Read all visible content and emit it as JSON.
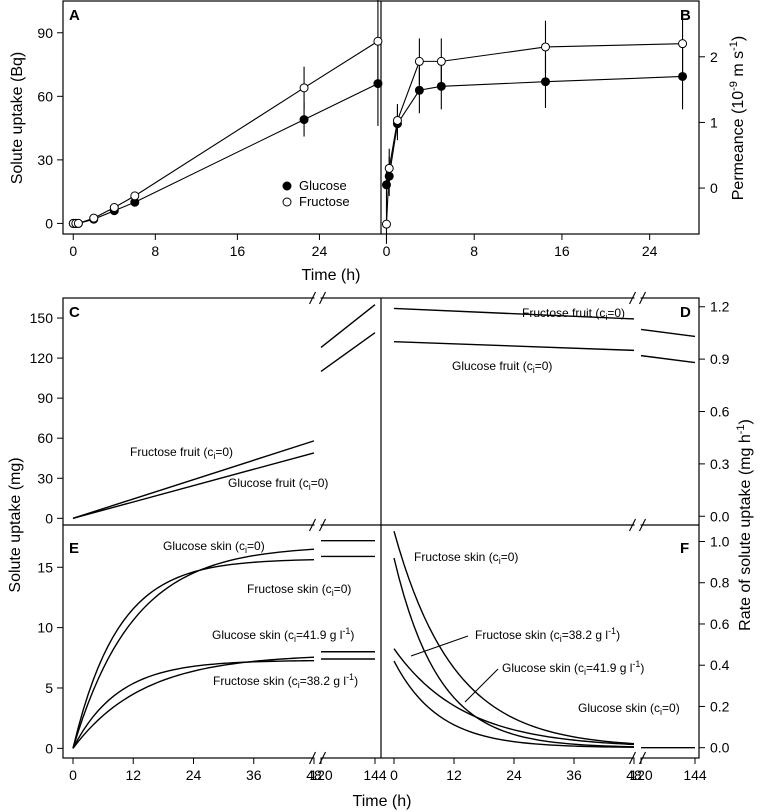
{
  "chart_data": [
    {
      "panel": "A",
      "type": "scatter",
      "xlabel": "Time (h)",
      "ylabel": "Solute uptake (Bq)",
      "xlim": [
        -1,
        30
      ],
      "ylim": [
        -5,
        105
      ],
      "x_ticks": [
        0,
        8,
        16,
        24
      ],
      "y_ticks": [
        0,
        30,
        60,
        90
      ],
      "series": [
        {
          "name": "Glucose",
          "marker": "filled",
          "x": [
            0,
            0.25,
            0.5,
            2,
            4,
            6,
            22.5,
            29.7
          ],
          "y": [
            0,
            0,
            0,
            2,
            6,
            10,
            49,
            66
          ],
          "err": [
            0,
            0,
            0,
            0.5,
            1,
            2,
            8,
            20
          ]
        },
        {
          "name": "Fructose",
          "marker": "open",
          "x": [
            0,
            0.25,
            0.5,
            2,
            4,
            6,
            22.5,
            29.7
          ],
          "y": [
            0,
            0,
            0,
            2.5,
            7.5,
            13,
            64,
            86
          ],
          "err": [
            0,
            0,
            0,
            0.5,
            1,
            2,
            10,
            20
          ]
        }
      ],
      "legend": [
        "Glucose",
        "Fructose"
      ]
    },
    {
      "panel": "B",
      "type": "scatter",
      "xlabel": "Time (h)",
      "ylabel": "Permeance (10⁻⁹ m s⁻¹)",
      "xlim": [
        -0.5,
        28.5
      ],
      "ylim": [
        -0.7,
        2.85
      ],
      "x_ticks": [
        0,
        8,
        16,
        24
      ],
      "y_ticks": [
        0,
        1,
        2
      ],
      "series": [
        {
          "name": "Glucose",
          "marker": "filled",
          "x": [
            0,
            0.25,
            1,
            3,
            5,
            14.5,
            27
          ],
          "y": [
            0.05,
            0.18,
            0.98,
            1.49,
            1.55,
            1.62,
            1.7
          ],
          "err": [
            0.3,
            0.3,
            0.25,
            0.35,
            0.35,
            0.4,
            0.5
          ]
        },
        {
          "name": "Fructose",
          "marker": "open",
          "x": [
            0,
            0.25,
            1,
            3,
            5,
            14.5,
            27
          ],
          "y": [
            -0.55,
            0.3,
            1.03,
            1.93,
            1.93,
            2.15,
            2.2
          ],
          "err": [
            0.3,
            0.3,
            0.25,
            0.35,
            0.35,
            0.4,
            0.5
          ]
        }
      ]
    },
    {
      "panel": "C",
      "type": "line",
      "ylim": [
        -5,
        165
      ],
      "y_ticks": [
        0,
        30,
        60,
        90,
        120,
        150
      ],
      "x_axis": "broken",
      "lines": [
        {
          "name": "Fructose fruit",
          "points": [
            [
              0,
              0
            ],
            [
              48,
              58
            ]
          ],
          "break_points": [
            [
              120,
              128
            ],
            [
              144,
              160
            ]
          ]
        },
        {
          "name": "Glucose fruit",
          "points": [
            [
              0,
              0
            ],
            [
              48,
              49
            ]
          ],
          "break_points": [
            [
              120,
              110
            ],
            [
              144,
              139
            ]
          ]
        }
      ]
    },
    {
      "panel": "D",
      "type": "line",
      "ylabel": "Rate of solute uptake (mg h⁻¹)",
      "ylim": [
        -0.05,
        1.25
      ],
      "y_ticks": [
        0.0,
        0.3,
        0.6,
        0.9,
        1.2
      ],
      "x_axis": "broken",
      "lines": [
        {
          "name": "Fructose fruit",
          "points": [
            [
              0,
              1.19
            ],
            [
              48,
              1.13
            ]
          ],
          "break_points": [
            [
              120,
              1.07
            ],
            [
              144,
              1.03
            ]
          ]
        },
        {
          "name": "Glucose fruit",
          "points": [
            [
              0,
              1.0
            ],
            [
              48,
              0.95
            ]
          ],
          "break_points": [
            [
              120,
              0.92
            ],
            [
              144,
              0.88
            ]
          ]
        }
      ]
    },
    {
      "panel": "E",
      "type": "line",
      "xlabel": "Time (h)",
      "ylabel": "Solute uptake (mg)",
      "ylim": [
        -0.8,
        18.5
      ],
      "y_ticks": [
        0,
        5,
        10,
        15
      ],
      "x_ticks": [
        0,
        12,
        24,
        36,
        48,
        120,
        144
      ],
      "x_axis": "broken",
      "curves": [
        {
          "name": "Glucose skin",
          "plateau": 16.8,
          "tau": 12,
          "after_break": 17.2
        },
        {
          "name": "Fructose skin",
          "plateau": 15.7,
          "tau": 9,
          "after_break": 15.9
        },
        {
          "name": "Glucose skin 41.9",
          "plateau": 7.8,
          "tau": 14,
          "after_break": 8.0
        },
        {
          "name": "Fructose skin 38.2",
          "plateau": 7.3,
          "tau": 9,
          "after_break": 7.4
        }
      ]
    },
    {
      "panel": "F",
      "type": "line",
      "xlabel": "Time (h)",
      "ylim": [
        -0.05,
        1.08
      ],
      "y_ticks": [
        0.0,
        0.2,
        0.4,
        0.6,
        0.8,
        1.0
      ],
      "x_ticks": [
        0,
        12,
        24,
        36,
        48,
        120,
        144
      ],
      "x_axis": "broken",
      "curves": [
        {
          "name": "Glucose skin",
          "start": 1.05,
          "tau": 12,
          "after_break": 0
        },
        {
          "name": "Fructose skin",
          "start": 0.92,
          "tau": 9,
          "after_break": 0
        },
        {
          "name": "Glucose skin 41.9",
          "start": 0.48,
          "tau": 14,
          "after_break": 0
        },
        {
          "name": "Fructose skin 38.2",
          "start": 0.42,
          "tau": 9,
          "after_break": 0
        }
      ]
    }
  ],
  "panels": {
    "A": "A",
    "B": "B",
    "C": "C",
    "D": "D",
    "E": "E",
    "F": "F"
  },
  "axes": {
    "top_xlabel": "Time (h)",
    "bottom_xlabel": "Time (h)",
    "top_left_ylabel": "Solute uptake (Bq)",
    "top_right_ylabel_main": "Permeance (10",
    "top_right_ylabel_sup1": "-9",
    "top_right_ylabel_mid": " m s",
    "top_right_ylabel_sup2": "-1",
    "top_right_ylabel_end": ")",
    "bottom_left_ylabel": "Solute uptake (mg)",
    "bottom_right_ylabel_main": "Rate of solute uptake (mg h",
    "bottom_right_ylabel_sup": "-1",
    "bottom_right_ylabel_end": ")"
  },
  "legend": {
    "glucose": "Glucose",
    "fructose": "Fructose"
  },
  "annotations": {
    "c_fructose": "Fructose fruit (c",
    "c_fructose_sub": "i",
    "c_fructose_tail": "=0)",
    "c_glucose": "Glucose fruit (c",
    "c_glucose_sub": "i",
    "c_glucose_tail": "=0)",
    "d_fructose": "Fructose fruit (c",
    "d_fructose_sub": "i",
    "d_fructose_tail": "=0)",
    "d_glucose": "Glucose fruit (c",
    "d_glucose_sub": "i",
    "d_glucose_tail": "=0)",
    "e_glucose": "Glucose skin (c",
    "e_glucose_sub": "i",
    "e_glucose_tail": "=0)",
    "e_fructose": "Fructose skin (c",
    "e_fructose_sub": "i",
    "e_fructose_tail": "=0)",
    "e_glucose41": "Glucose skin (c",
    "e_glucose41_sub": "i",
    "e_glucose41_tail": "=41.9 g l",
    "e_glucose41_sup": "-1",
    "e_glucose41_end": ")",
    "e_fructose38": "Fructose skin (c",
    "e_fructose38_sub": "i",
    "e_fructose38_tail": "=38.2 g l",
    "e_fructose38_sup": "-1",
    "e_fructose38_end": ")",
    "f_fructose": "Fructose skin (c",
    "f_fructose_sub": "i",
    "f_fructose_tail": "=0)",
    "f_fructose38": "Fructose skin (c",
    "f_fructose38_sub": "i",
    "f_fructose38_tail": "=38.2 g l",
    "f_fructose38_sup": "-1",
    "f_fructose38_end": ")",
    "f_glucose41": "Glucose skin (c",
    "f_glucose41_sub": "i",
    "f_glucose41_tail": "=41.9 g l",
    "f_glucose41_sup": "-1",
    "f_glucose41_end": ")",
    "f_glucose": "Glucose skin (c",
    "f_glucose_sub": "i",
    "f_glucose_tail": "=0)"
  }
}
